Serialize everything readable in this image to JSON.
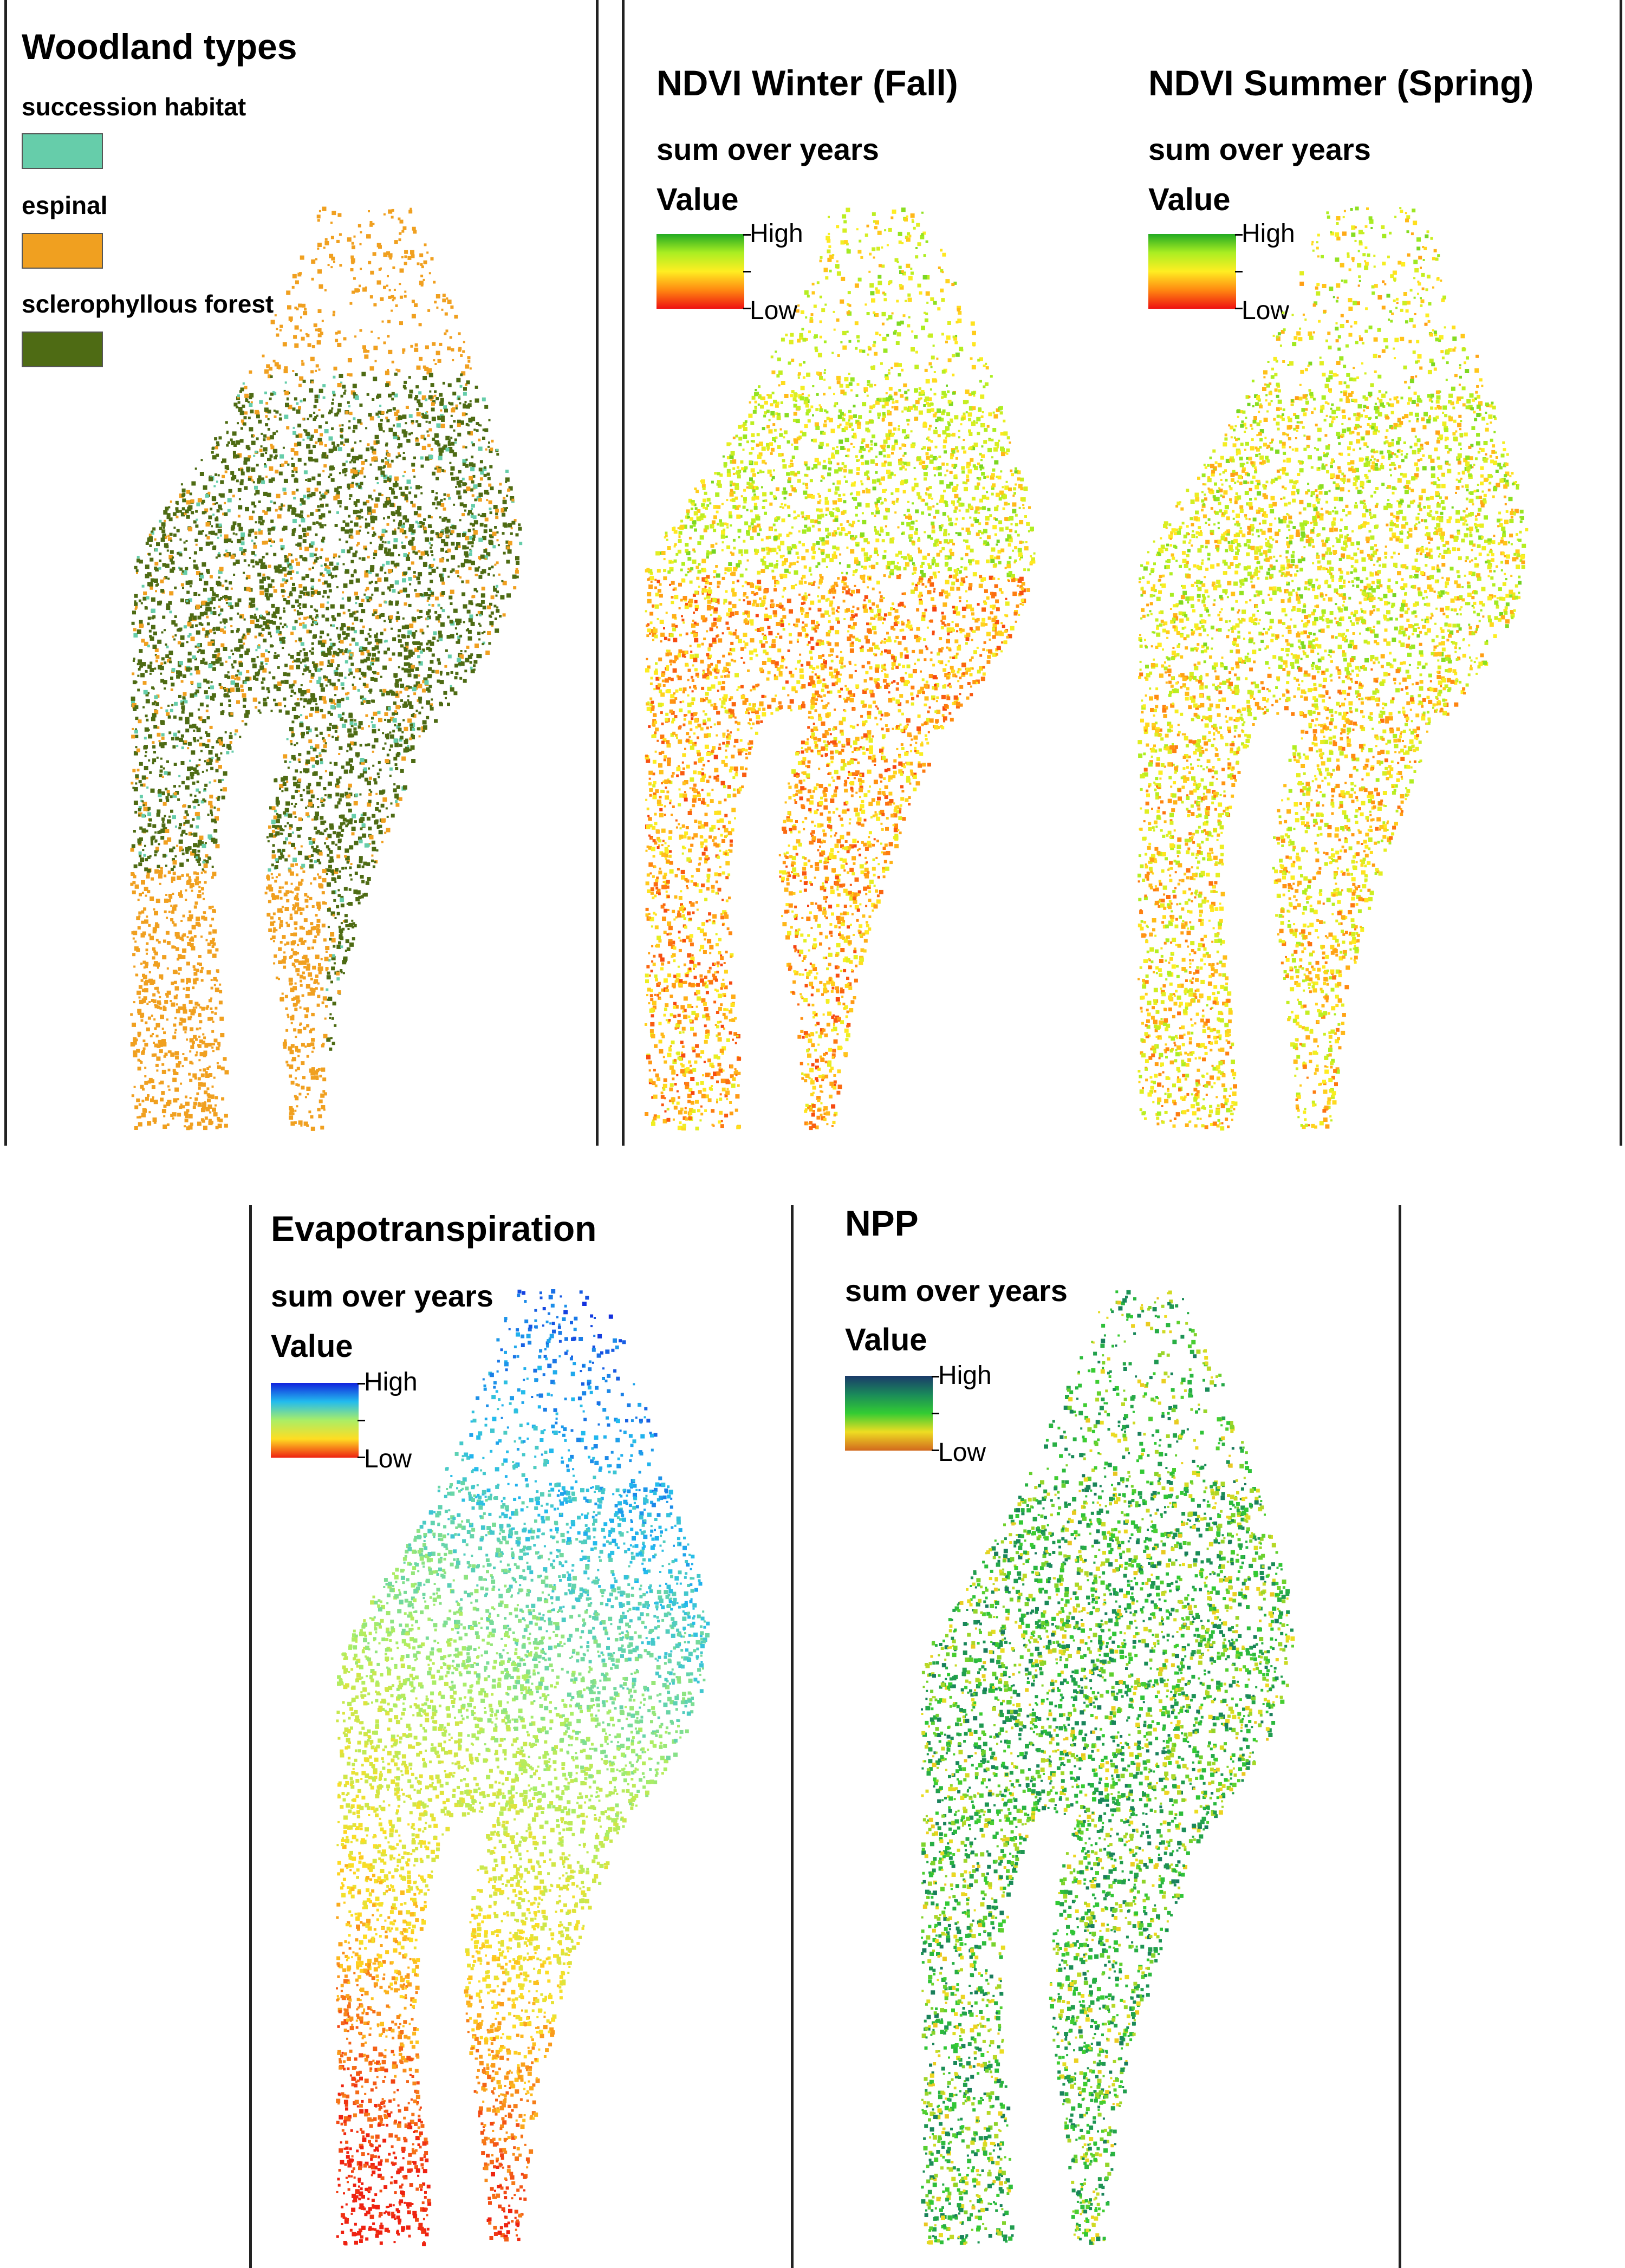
{
  "panels": {
    "woodland": {
      "title": "Woodland types",
      "categories": [
        {
          "label": "succession habitat",
          "color": "#66CDAA"
        },
        {
          "label": "espinal",
          "color": "#F0A020"
        },
        {
          "label": "sclerophyllous forest",
          "color": "#4E6B14"
        }
      ]
    },
    "ndvi_winter": {
      "title": "NDVI Winter (Fall)",
      "subtitle": "sum over years",
      "legend_heading": "Value",
      "high_label": "High",
      "low_label": "Low",
      "ramp_colors": [
        "#22AA22",
        "#AAEE22",
        "#FFEE22",
        "#FF8811",
        "#EE1111"
      ]
    },
    "ndvi_summer": {
      "title": "NDVI Summer (Spring)",
      "subtitle": "sum over years",
      "legend_heading": "Value",
      "high_label": "High",
      "low_label": "Low",
      "ramp_colors": [
        "#22AA22",
        "#AAEE22",
        "#FFEE22",
        "#FF8811",
        "#EE1111"
      ]
    },
    "evapotranspiration": {
      "title": "Evapotranspiration",
      "subtitle": "sum over years",
      "legend_heading": "Value",
      "high_label": "High",
      "low_label": "Low",
      "ramp_colors": [
        "#1122DD",
        "#22BBEE",
        "#AAEE66",
        "#FFDD22",
        "#EE2211"
      ]
    },
    "npp": {
      "title": "NPP",
      "subtitle": "sum over years",
      "legend_heading": "Value",
      "high_label": "High",
      "low_label": "Low",
      "ramp_colors": [
        "#1A3A6A",
        "#1A8A5A",
        "#33CC33",
        "#EEDD22",
        "#D2691E"
      ]
    }
  }
}
